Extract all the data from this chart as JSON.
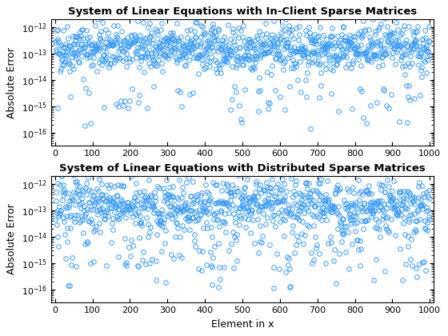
{
  "title1": "System of Linear Equations with In-Client Sparse Matrices",
  "title2": "System of Linear Equations with Distributed Sparse Matrices",
  "xlabel": "Element in x",
  "ylabel": "Absolute Error",
  "xlim": [
    -10,
    1010
  ],
  "ylim_log": [
    -16.5,
    -11.7
  ],
  "n_points": 1000,
  "seed1": 42,
  "seed2": 123,
  "marker_color": "#3399FF",
  "marker_size": 4,
  "marker_lw": 0.7,
  "bg_color": "#FFFFFF",
  "title_fontsize": 9.5,
  "label_fontsize": 9,
  "tick_fontsize": 8
}
